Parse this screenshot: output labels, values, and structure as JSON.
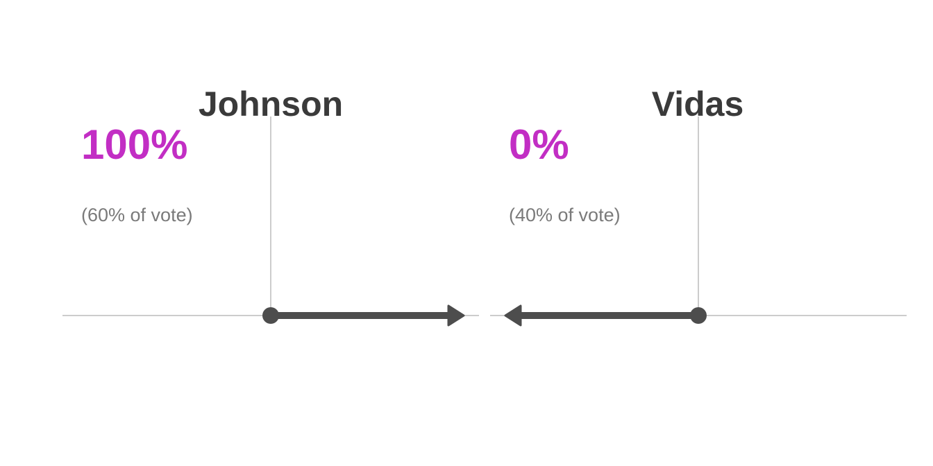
{
  "colors": {
    "accent": "#c22ec4",
    "arrow": "#4d4d4d",
    "rule": "#cccccc",
    "name": "#3a3a3a",
    "vote_text": "#7a7a7a"
  },
  "chart_data": [
    {
      "type": "arrow",
      "candidate": "Johnson",
      "percent_label": "100%",
      "vote_label": "(60% of vote)",
      "vote_share": 60,
      "outcome": 100,
      "direction": "right"
    },
    {
      "type": "arrow",
      "candidate": "Vidas",
      "percent_label": "0%",
      "vote_label": "(40% of vote)",
      "vote_share": 40,
      "outcome": 0,
      "direction": "left"
    }
  ]
}
